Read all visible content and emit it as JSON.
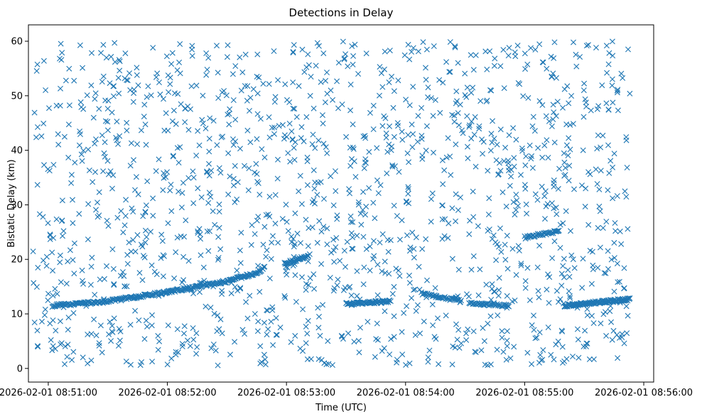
{
  "chart_data": {
    "type": "scatter",
    "title": "Detections in Delay",
    "xlabel": "Time (UTC)",
    "ylabel": "Bistatic Delay (km)",
    "marker": "x",
    "color": "#1f77b4",
    "grid": false,
    "legend": "none",
    "xlim": [
      "2026-02-01 08:50:50",
      "2026-02-01 08:56:05"
    ],
    "ylim": [
      -2.5,
      63
    ],
    "x_ticks": [
      "2026-02-01 08:51:00",
      "2026-02-01 08:52:00",
      "2026-02-01 08:53:00",
      "2026-02-01 08:54:00",
      "2026-02-01 08:55:00",
      "2026-02-01 08:56:00"
    ],
    "y_ticks": [
      0,
      10,
      20,
      30,
      40,
      50,
      60
    ],
    "data_span": [
      "2026-02-01 08:50:52",
      "2026-02-01 08:55:53"
    ],
    "clutter": {
      "count": 1500,
      "delay_range": [
        0.5,
        60
      ]
    },
    "tracks": [
      {
        "points": [
          [
            "2026-02-01 08:51:02",
            11.5
          ],
          [
            "2026-02-01 08:51:30",
            12.3
          ],
          [
            "2026-02-01 08:52:00",
            14.0
          ],
          [
            "2026-02-01 08:52:30",
            16.0
          ],
          [
            "2026-02-01 08:52:45",
            17.5
          ],
          [
            "2026-02-01 08:52:49",
            18.5
          ]
        ],
        "count": 260
      },
      {
        "points": [
          [
            "2026-02-01 08:52:59",
            19.2
          ],
          [
            "2026-02-01 08:53:11",
            20.6
          ]
        ],
        "count": 35
      },
      {
        "points": [
          [
            "2026-02-01 08:53:30",
            11.8
          ],
          [
            "2026-02-01 08:53:52",
            12.3
          ]
        ],
        "count": 65
      },
      {
        "points": [
          [
            "2026-02-01 08:54:08",
            13.8
          ],
          [
            "2026-02-01 08:54:28",
            12.3
          ]
        ],
        "count": 40
      },
      {
        "points": [
          [
            "2026-02-01 08:54:32",
            12.0
          ],
          [
            "2026-02-01 08:54:52",
            11.5
          ]
        ],
        "count": 45
      },
      {
        "points": [
          [
            "2026-02-01 08:55:00",
            24.0
          ],
          [
            "2026-02-01 08:55:17",
            25.2
          ]
        ],
        "count": 40
      },
      {
        "points": [
          [
            "2026-02-01 08:55:20",
            11.5
          ],
          [
            "2026-02-01 08:55:53",
            12.7
          ]
        ],
        "count": 120
      }
    ]
  }
}
